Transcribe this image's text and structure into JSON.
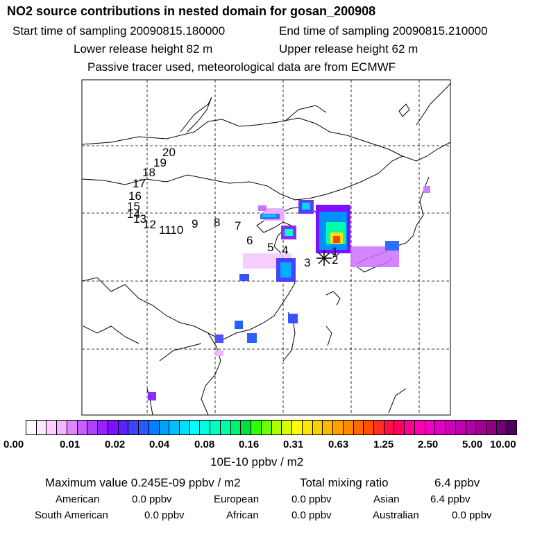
{
  "header": {
    "title": "NO2 source contributions in nested domain for gosan_200908",
    "start_time": "Start time of sampling 20090815.180000",
    "end_time": "End time of sampling 20090815.210000",
    "lower_release": "Lower release height   82 m",
    "upper_release": "Upper release height   62 m",
    "tracer_note": "Passive tracer used, meteorological data are from ECMWF"
  },
  "map": {
    "station_marker": "star-marker",
    "trajectory_labels": [
      "1",
      "2",
      "3",
      "4",
      "5",
      "6",
      "7",
      "8",
      "9",
      "1110",
      "12",
      "13",
      "14",
      "15",
      "16",
      "17",
      "18",
      "19",
      "20"
    ]
  },
  "colorbar": {
    "ticks": [
      "0.00",
      "0.01",
      "0.02",
      "0.04",
      "0.08",
      "0.16",
      "0.31",
      "0.63",
      "1.25",
      "2.50",
      "5.00",
      "10.00"
    ],
    "unit": "10E-10 ppbv / m2",
    "colors": [
      "#ffffff",
      "#ffe8ff",
      "#ffd0ff",
      "#f2b5ff",
      "#dd88ff",
      "#c860ff",
      "#b040ff",
      "#9b20ff",
      "#7a10ff",
      "#5c20ff",
      "#4040ff",
      "#2858ff",
      "#0080ff",
      "#00a0ff",
      "#00c0ff",
      "#00e0ff",
      "#00ffff",
      "#00ffe0",
      "#00ffc0",
      "#00ffa0",
      "#00f070",
      "#00e040",
      "#30ff00",
      "#70ff00",
      "#b0ff00",
      "#d8ff00",
      "#ffff00",
      "#ffe800",
      "#ffd000",
      "#ffb800",
      "#ffa000",
      "#ff8800",
      "#ff6a00",
      "#ff5000",
      "#ff3020",
      "#ff1040",
      "#ff0060",
      "#ff0090",
      "#ff00b0",
      "#f000c0",
      "#e000c0",
      "#d000b8",
      "#c000b0",
      "#b000a8",
      "#a00090",
      "#900080",
      "#700070",
      "#500060"
    ]
  },
  "stats": {
    "max_value": "Maximum value  0.245E-09 ppbv / m2",
    "total_label": "Total mixing ratio",
    "total_value": "6.4 ppbv",
    "regions": [
      {
        "name": "American",
        "value": "0.0 ppbv"
      },
      {
        "name": "European",
        "value": "0.0 ppbv"
      },
      {
        "name": "Asian",
        "value": "6.4 ppbv"
      },
      {
        "name": "South American",
        "value": "0.0 ppbv"
      },
      {
        "name": "African",
        "value": "0.0 ppbv"
      },
      {
        "name": "Australian",
        "value": "0.0 ppbv"
      }
    ]
  }
}
